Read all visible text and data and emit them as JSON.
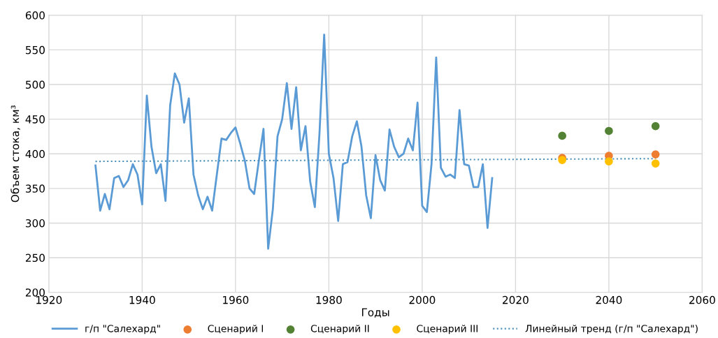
{
  "chart_data": {
    "type": "line",
    "xlabel": "Годы",
    "ylabel": "Объем стока, км³",
    "xlim": [
      1920,
      2060
    ],
    "xticks": [
      1920,
      1940,
      1960,
      1980,
      2000,
      2020,
      2040,
      2060
    ],
    "ylim": [
      200,
      600
    ],
    "yticks": [
      200,
      250,
      300,
      350,
      400,
      450,
      500,
      550,
      600
    ],
    "grid": true,
    "legend": "bottom",
    "series": [
      {
        "name": "г/п \"Салехард\"",
        "color": "#5b9bd5",
        "marker": "none",
        "line_style": "solid",
        "x": [
          1930,
          1931,
          1932,
          1933,
          1934,
          1935,
          1936,
          1937,
          1938,
          1939,
          1940,
          1941,
          1942,
          1943,
          1944,
          1945,
          1946,
          1947,
          1948,
          1949,
          1950,
          1951,
          1952,
          1953,
          1954,
          1955,
          1956,
          1957,
          1958,
          1959,
          1960,
          1961,
          1962,
          1963,
          1964,
          1965,
          1966,
          1967,
          1968,
          1969,
          1970,
          1971,
          1972,
          1973,
          1974,
          1975,
          1976,
          1977,
          1978,
          1979,
          1980,
          1981,
          1982,
          1983,
          1984,
          1985,
          1986,
          1987,
          1988,
          1989,
          1990,
          1991,
          1992,
          1993,
          1994,
          1995,
          1996,
          1997,
          1998,
          1999,
          2000,
          2001,
          2002,
          2003,
          2004,
          2005,
          2006,
          2007,
          2008,
          2009,
          2010,
          2011,
          2012,
          2013,
          2014,
          2015
        ],
        "values": [
          383,
          318,
          342,
          320,
          365,
          368,
          352,
          362,
          385,
          370,
          327,
          484,
          410,
          372,
          385,
          332,
          470,
          516,
          500,
          445,
          480,
          370,
          340,
          320,
          338,
          318,
          370,
          422,
          420,
          430,
          438,
          415,
          390,
          350,
          342,
          390,
          436,
          263,
          320,
          425,
          450,
          502,
          436,
          496,
          405,
          440,
          360,
          323,
          430,
          572,
          400,
          365,
          303,
          385,
          388,
          425,
          447,
          410,
          340,
          307,
          398,
          362,
          347,
          435,
          410,
          395,
          400,
          422,
          405,
          474,
          325,
          316,
          385,
          539,
          380,
          367,
          370,
          365,
          463,
          385,
          383,
          352,
          352,
          385,
          293,
          365
        ]
      },
      {
        "name": "Сценарий I",
        "type": "scatter",
        "color": "#ed7d31",
        "marker": "circle",
        "x": [
          2030,
          2040,
          2050
        ],
        "values": [
          394,
          397,
          399
        ]
      },
      {
        "name": "Сценарий II",
        "type": "scatter",
        "color": "#548235",
        "marker": "circle",
        "x": [
          2030,
          2040,
          2050
        ],
        "values": [
          426,
          433,
          440
        ]
      },
      {
        "name": "Сценарий III",
        "type": "scatter",
        "color": "#ffc000",
        "marker": "circle",
        "x": [
          2030,
          2040,
          2050
        ],
        "values": [
          391,
          389,
          386
        ]
      },
      {
        "name": "Линейный тренд (г/п \"Салехард\")",
        "color": "#4a90b8",
        "marker": "none",
        "line_style": "dotted",
        "x": [
          1930,
          2050
        ],
        "values": [
          389,
          393
        ]
      }
    ]
  }
}
